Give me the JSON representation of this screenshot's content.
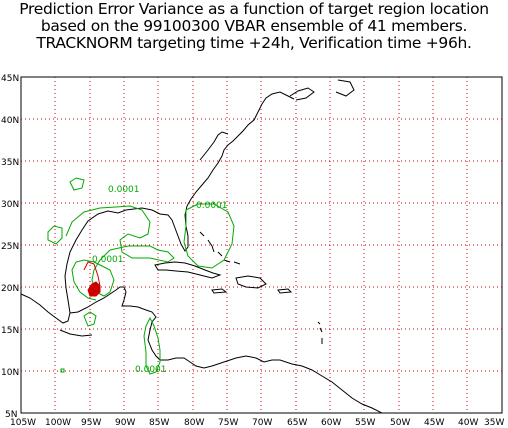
{
  "title": {
    "line1": "Prediction Error Variance as a function of target region location",
    "line2": "based on the 99100300 VBAR ensemble of 41 members.",
    "line3": "TRACKNORM targeting time +24h, Verification time +96h."
  },
  "axes": {
    "lat_ticks": [
      "45N",
      "40N",
      "35N",
      "30N",
      "25N",
      "20N",
      "15N",
      "10N",
      "5N"
    ],
    "lon_ticks": [
      "105W",
      "100W",
      "95W",
      "90W",
      "85W",
      "80W",
      "75W",
      "70W",
      "65W",
      "60W",
      "55W",
      "50W",
      "45W",
      "40W",
      "35W"
    ]
  },
  "contour_labels": [
    {
      "text": "0.0001"
    },
    {
      "text": "0.0001"
    },
    {
      "text": "0.0001"
    },
    {
      "text": "0.0001"
    }
  ],
  "colors": {
    "grid": "#cc0000",
    "coast": "#000000",
    "contour_low": "#00aa00",
    "contour_high": "#cc0000"
  }
}
